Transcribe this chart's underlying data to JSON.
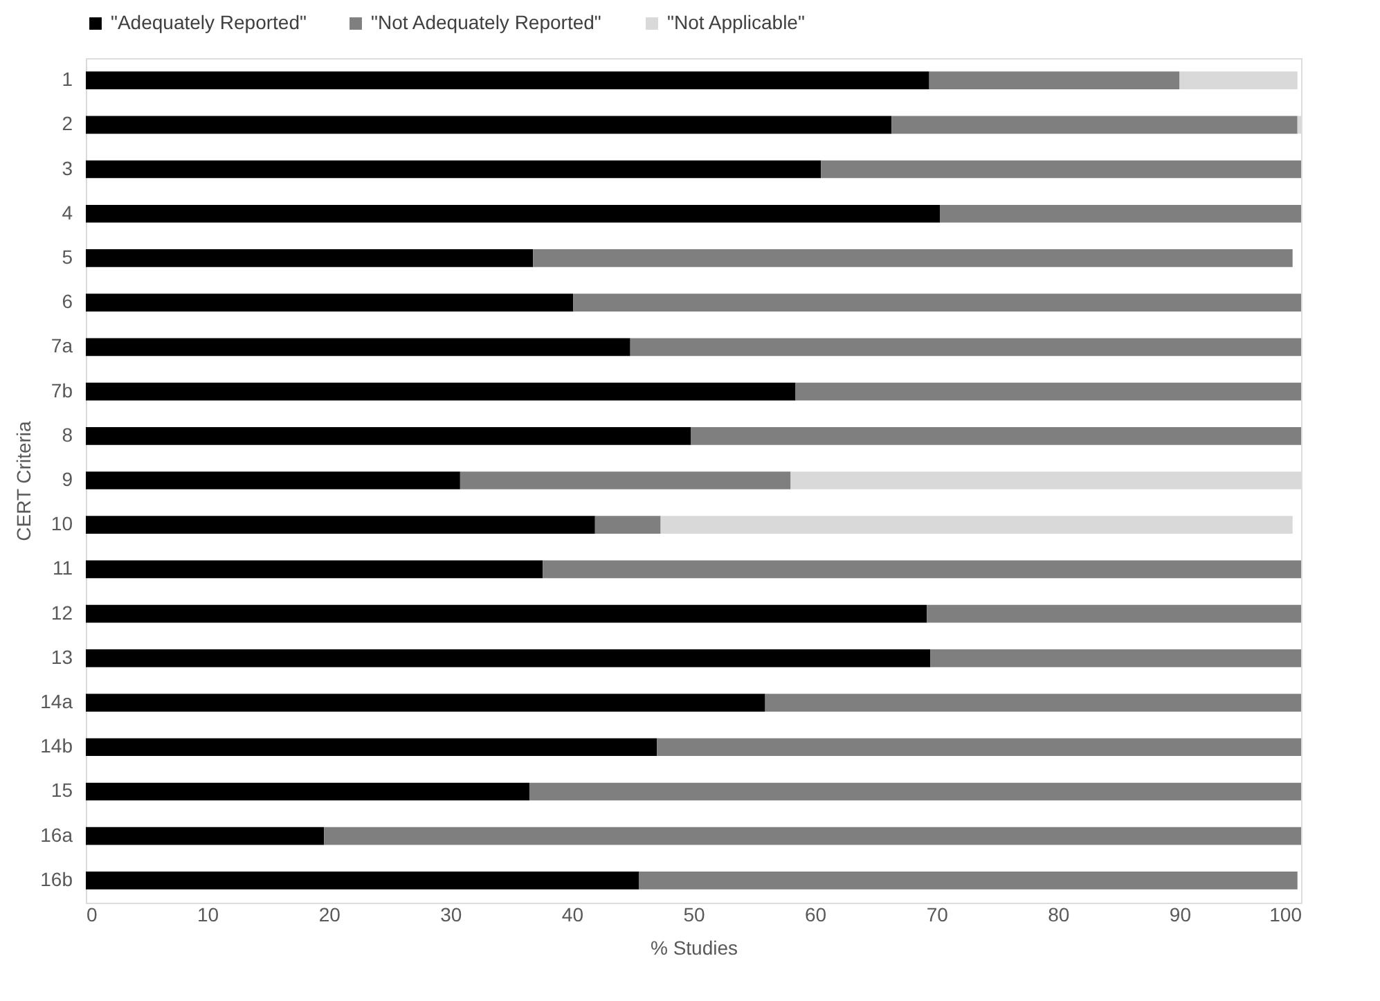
{
  "chart_data": {
    "type": "bar",
    "orientation": "horizontal",
    "stacked": true,
    "xlabel": "% Studies",
    "ylabel": "CERT Criteria",
    "categories": [
      "1",
      "2",
      "3",
      "4",
      "5",
      "6",
      "7a",
      "7b",
      "8",
      "9",
      "10",
      "11",
      "12",
      "13",
      "14a",
      "14b",
      "15",
      "16a",
      "16b"
    ],
    "series": [
      {
        "name": "\"Adequately Reported\"",
        "color": "#000000",
        "values": [
          69.4,
          66.3,
          60.5,
          70.3,
          36.8,
          40.1,
          44.8,
          58.4,
          49.8,
          30.8,
          41.9,
          37.6,
          69.2,
          69.5,
          55.9,
          47.0,
          36.5,
          19.6,
          45.5
        ]
      },
      {
        "name": "\"Not Adequately Reported\"",
        "color": "#7f7f7f",
        "values": [
          20.6,
          33.4,
          39.5,
          29.7,
          62.5,
          59.9,
          55.2,
          41.6,
          50.2,
          27.2,
          5.4,
          62.4,
          30.8,
          30.5,
          44.1,
          53.0,
          63.5,
          80.4,
          54.2
        ]
      },
      {
        "name": "\"Not Applicable\"",
        "color": "#d9d9d9",
        "values": [
          9.7,
          0.3,
          null,
          null,
          null,
          null,
          null,
          null,
          null,
          42.0,
          52.0,
          null,
          null,
          null,
          null,
          null,
          null,
          null,
          null
        ]
      }
    ],
    "xlim": [
      0,
      100
    ],
    "xticks": [
      0,
      10,
      20,
      30,
      40,
      50,
      60,
      70,
      80,
      90,
      100
    ],
    "grid": false,
    "legend": "top"
  }
}
